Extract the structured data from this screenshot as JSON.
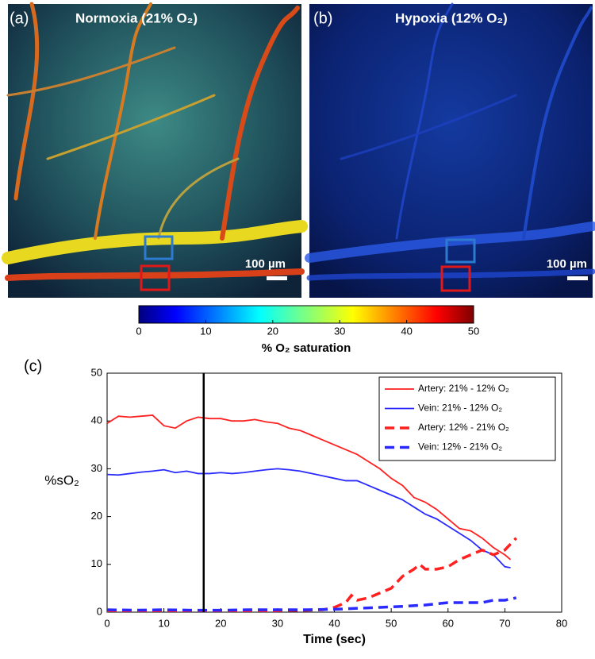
{
  "panels": [
    {
      "label": "(a)",
      "title": "Normoxia (21% O₂)",
      "scale": "100 µm"
    },
    {
      "label": "(b)",
      "title": "Hypoxia (12% O₂)",
      "scale": "100 µm"
    }
  ],
  "colorbar": {
    "lim": [
      0,
      50
    ],
    "ticks": [
      0,
      10,
      20,
      30,
      40,
      50
    ],
    "label": "% O₂ saturation"
  },
  "chart_data": {
    "type": "line",
    "panel_label": "(c)",
    "xlabel": "Time (sec)",
    "ylabel": "%sO₂",
    "xlim": [
      0,
      80
    ],
    "ylim": [
      0,
      50
    ],
    "xticks": [
      0,
      10,
      20,
      30,
      40,
      50,
      60,
      70,
      80
    ],
    "yticks": [
      0,
      10,
      20,
      30,
      40,
      50
    ],
    "vline": 17,
    "legend": "upper right",
    "series": [
      {
        "name": "Artery: 21% - 12% O₂",
        "color": "#ff2020",
        "dashed": false,
        "x": [
          0,
          2,
          4,
          6,
          8,
          10,
          12,
          14,
          16,
          18,
          20,
          22,
          24,
          26,
          28,
          30,
          32,
          34,
          36,
          38,
          40,
          42,
          44,
          46,
          48,
          50,
          52,
          54,
          56,
          58,
          60,
          62,
          64,
          66,
          68,
          70,
          71
        ],
        "values": [
          39.5,
          41,
          40.8,
          41,
          41.2,
          39,
          38.5,
          40,
          40.8,
          40.5,
          40.5,
          40,
          40,
          40.3,
          39.8,
          39.5,
          38.5,
          38,
          37,
          36,
          35,
          34,
          33,
          31.5,
          30,
          28,
          26.5,
          24,
          23,
          21.5,
          19.5,
          17.5,
          17,
          15.5,
          13.5,
          12,
          11
        ]
      },
      {
        "name": "Vein: 21% - 12% O₂",
        "color": "#2a2aff",
        "dashed": false,
        "x": [
          0,
          2,
          4,
          6,
          8,
          10,
          12,
          14,
          16,
          18,
          20,
          22,
          24,
          26,
          28,
          30,
          32,
          34,
          36,
          38,
          40,
          42,
          44,
          46,
          48,
          50,
          52,
          54,
          56,
          58,
          60,
          62,
          64,
          66,
          68,
          70,
          71
        ],
        "values": [
          28.8,
          28.7,
          29,
          29.3,
          29.5,
          29.8,
          29.2,
          29.5,
          29,
          29,
          29.2,
          29,
          29.2,
          29.5,
          29.8,
          30,
          29.8,
          29.5,
          29,
          28.5,
          28,
          27.5,
          27.5,
          26.5,
          25.5,
          24.5,
          23.5,
          22,
          20.5,
          19.5,
          18,
          16.5,
          15,
          13,
          12,
          9.5,
          9.3
        ]
      },
      {
        "name": "Artery: 12% - 21% O₂",
        "color": "#ff2020",
        "dashed": true,
        "x": [
          0,
          5,
          10,
          15,
          20,
          25,
          30,
          35,
          38,
          40,
          42,
          43,
          44,
          46,
          48,
          50,
          52,
          54,
          55,
          56,
          58,
          60,
          62,
          64,
          66,
          68,
          70,
          72
        ],
        "values": [
          0.3,
          0.3,
          0.3,
          0.3,
          0.3,
          0.3,
          0.3,
          0.4,
          0.5,
          1,
          2,
          3.5,
          2.5,
          3,
          4,
          5,
          7.5,
          9,
          10,
          9,
          9,
          9.5,
          11,
          12,
          13,
          12,
          13,
          15.5
        ]
      },
      {
        "name": "Vein: 12% - 21% O₂",
        "color": "#2a2aff",
        "dashed": true,
        "x": [
          0,
          5,
          10,
          15,
          20,
          25,
          30,
          35,
          40,
          44,
          48,
          52,
          56,
          60,
          64,
          66,
          68,
          70,
          72
        ],
        "values": [
          0.5,
          0.4,
          0.5,
          0.4,
          0.4,
          0.5,
          0.5,
          0.5,
          0.6,
          0.8,
          1,
          1.2,
          1.5,
          2,
          2,
          2,
          2.5,
          2.5,
          3
        ]
      }
    ]
  }
}
